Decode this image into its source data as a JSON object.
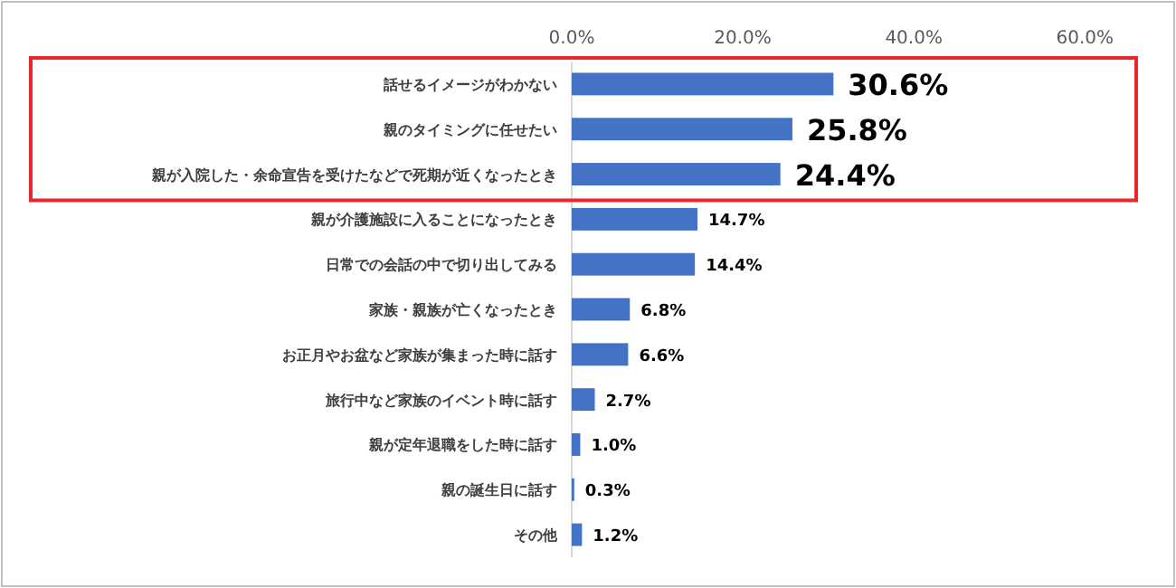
{
  "chart_data": {
    "type": "bar",
    "orientation": "horizontal",
    "categories": [
      "話せるイメージがわかない",
      "親のタイミングに任せたい",
      "親が入院した・余命宣告を受けたなどで死期が近くなったとき",
      "親が介護施設に入ることになったとき",
      "日常での会話の中で切り出してみる",
      "家族・親族が亡くなったとき",
      "お正月やお盆など家族が集まった時に話す",
      "旅行中など家族のイベント時に話す",
      "親が定年退職をした時に話す",
      "親の誕生日に話す",
      "その他"
    ],
    "values": [
      30.6,
      25.8,
      24.4,
      14.7,
      14.4,
      6.8,
      6.6,
      2.7,
      1.0,
      0.3,
      1.2
    ],
    "value_labels": [
      "30.6%",
      "25.8%",
      "24.4%",
      "14.7%",
      "14.4%",
      "6.8%",
      "6.6%",
      "2.7%",
      "1.0%",
      "0.3%",
      "1.2%"
    ],
    "color": "#4472c4",
    "xlim": [
      0,
      66
    ],
    "xticks": [
      {
        "value": 0,
        "label": "0.0%"
      },
      {
        "value": 20,
        "label": "20.0%"
      },
      {
        "value": 40,
        "label": "40.0%"
      },
      {
        "value": 60,
        "label": "60.0%"
      }
    ],
    "grid": false
  }
}
